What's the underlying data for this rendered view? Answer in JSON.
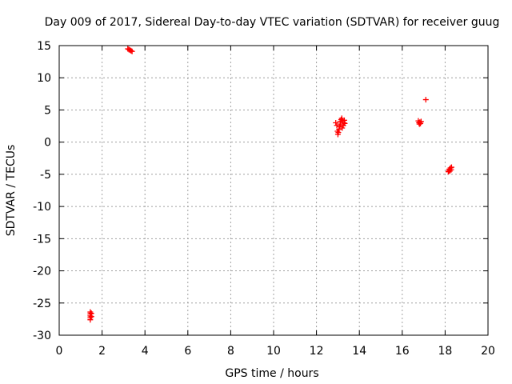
{
  "chart_data": {
    "type": "scatter",
    "title": "Day 009 of 2017, Sidereal Day-to-day VTEC variation (SDTVAR) for receiver guug",
    "xlabel": "GPS time / hours",
    "ylabel": "SDTVAR / TECUs",
    "xlim": [
      0,
      20
    ],
    "ylim": [
      -30,
      15
    ],
    "xticks": [
      0,
      2,
      4,
      6,
      8,
      10,
      12,
      14,
      16,
      18,
      20
    ],
    "yticks": [
      -30,
      -25,
      -20,
      -15,
      -10,
      -5,
      0,
      5,
      10,
      15
    ],
    "grid": true,
    "marker": "plus",
    "series": [
      {
        "name": "SDTVAR",
        "color": "#ff0000",
        "points": [
          [
            1.45,
            -26.4
          ],
          [
            1.45,
            -26.7
          ],
          [
            1.45,
            -27.0
          ],
          [
            1.45,
            -27.3
          ],
          [
            1.45,
            -27.6
          ],
          [
            1.5,
            -26.6
          ],
          [
            1.5,
            -27.1
          ],
          [
            3.2,
            14.5
          ],
          [
            3.25,
            14.4
          ],
          [
            3.3,
            14.3
          ],
          [
            3.35,
            14.2
          ],
          [
            3.4,
            14.1
          ],
          [
            12.9,
            3.0
          ],
          [
            12.95,
            2.6
          ],
          [
            12.98,
            1.7
          ],
          [
            13.0,
            1.2
          ],
          [
            13.02,
            1.5
          ],
          [
            13.05,
            2.0
          ],
          [
            13.08,
            2.4
          ],
          [
            13.1,
            3.2
          ],
          [
            13.12,
            2.8
          ],
          [
            13.15,
            3.5
          ],
          [
            13.18,
            3.7
          ],
          [
            13.2,
            2.2
          ],
          [
            13.22,
            3.3
          ],
          [
            13.25,
            2.6
          ],
          [
            13.28,
            3.0
          ],
          [
            13.3,
            3.4
          ],
          [
            13.32,
            2.9
          ],
          [
            16.75,
            3.3
          ],
          [
            16.78,
            3.0
          ],
          [
            16.8,
            2.8
          ],
          [
            16.82,
            3.1
          ],
          [
            16.85,
            2.9
          ],
          [
            16.88,
            3.2
          ],
          [
            17.1,
            6.6
          ],
          [
            18.15,
            -4.6
          ],
          [
            18.18,
            -4.4
          ],
          [
            18.2,
            -4.2
          ],
          [
            18.22,
            -4.5
          ],
          [
            18.25,
            -4.0
          ],
          [
            18.28,
            -4.3
          ],
          [
            18.3,
            -3.9
          ]
        ]
      }
    ]
  }
}
